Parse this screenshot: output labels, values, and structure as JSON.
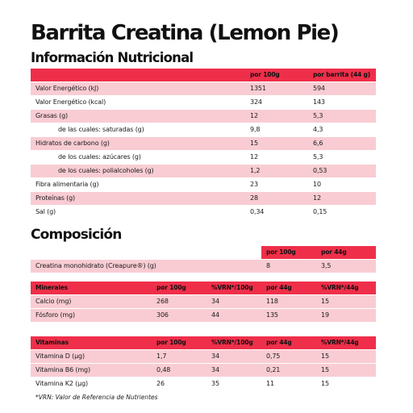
{
  "title": "Barrita Creatina (Lemon Pie)",
  "nutrition": {
    "heading": "Información Nutricional",
    "col_per100": "por 100g",
    "col_perbar": "por barrita (44 g)",
    "rows": [
      {
        "label": "Valor Energético (kJ)",
        "p100": "1351",
        "pbar": "594"
      },
      {
        "label": "Valor Energético (kcal)",
        "p100": "324",
        "pbar": "143"
      },
      {
        "label": "Grasas (g)",
        "p100": "12",
        "pbar": "5,3"
      },
      {
        "label": "de las cuales: saturadas (g)",
        "p100": "9,8",
        "pbar": "4,3"
      },
      {
        "label": "Hidratos de carbono (g)",
        "p100": "15",
        "pbar": "6,6"
      },
      {
        "label": "de los cuales: azúcares (g)",
        "p100": "12",
        "pbar": "5,3"
      },
      {
        "label": "de los cuales: polialcoholes (g)",
        "p100": "1,2",
        "pbar": "0,53"
      },
      {
        "label": "Fibra alimentaria (g)",
        "p100": "23",
        "pbar": "10"
      },
      {
        "label": "Proteínas (g)",
        "p100": "28",
        "pbar": "12"
      },
      {
        "label": "Sal (g)",
        "p100": "0,34",
        "pbar": "0,15"
      }
    ]
  },
  "composition": {
    "heading": "Composición",
    "col_per100": "por 100g",
    "col_per44": "por 44g",
    "row": {
      "label": "Creatina monohidrato (Creapure®) (g)",
      "p100": "8",
      "p44": "3,5"
    }
  },
  "minerals": {
    "heading": "Minerales",
    "cols": [
      "por 100g",
      "%VRN*/100g",
      "por 44g",
      "%VRN*/44g"
    ],
    "rows": [
      {
        "label": "Calcio (mg)",
        "v": [
          "268",
          "34",
          "118",
          "15"
        ]
      },
      {
        "label": "Fósforo (mg)",
        "v": [
          "306",
          "44",
          "135",
          "19"
        ]
      }
    ]
  },
  "vitamins": {
    "heading": "Vitaminas",
    "cols": [
      "por 100g",
      "%VRN*/100g",
      "por 44g",
      "%VRN*/44g"
    ],
    "rows": [
      {
        "label": "Vitamina D (µg)",
        "v": [
          "1,7",
          "34",
          "0,75",
          "15"
        ]
      },
      {
        "label": "Vitamina B6 (mg)",
        "v": [
          "0,48",
          "34",
          "0,21",
          "15"
        ]
      },
      {
        "label": "Vitamina K2 (µg)",
        "v": [
          "26",
          "35",
          "11",
          "15"
        ]
      }
    ]
  },
  "footnote": "*VRN: Valor de Referencia de Nutrientes",
  "colors": {
    "accent": "#ef2f4a",
    "row_tint": "#f9ccd3"
  }
}
